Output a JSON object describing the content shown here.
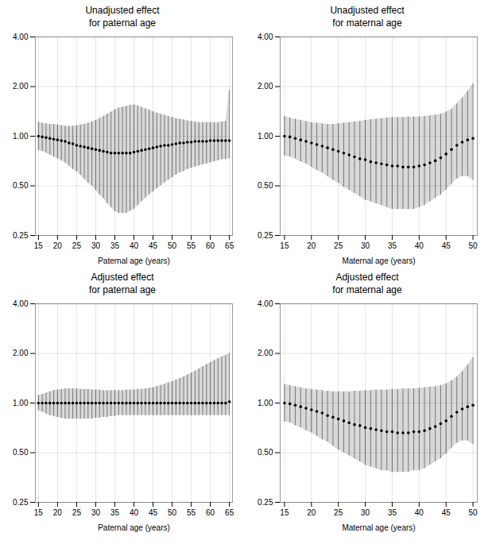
{
  "chart_data": [
    {
      "type": "scatter",
      "title": "Unadjusted effect\nfor paternal age",
      "x_label": "Paternal age (years)",
      "x": [
        15,
        16,
        17,
        18,
        19,
        20,
        21,
        22,
        23,
        24,
        25,
        26,
        27,
        28,
        29,
        30,
        31,
        32,
        33,
        34,
        35,
        36,
        37,
        38,
        39,
        40,
        41,
        42,
        43,
        44,
        45,
        46,
        47,
        48,
        49,
        50,
        51,
        52,
        53,
        54,
        55,
        56,
        57,
        58,
        59,
        60,
        61,
        62,
        63,
        64,
        65
      ],
      "values": [
        1.0,
        0.99,
        0.98,
        0.97,
        0.96,
        0.95,
        0.94,
        0.93,
        0.91,
        0.9,
        0.88,
        0.87,
        0.86,
        0.85,
        0.84,
        0.83,
        0.82,
        0.81,
        0.8,
        0.79,
        0.79,
        0.79,
        0.79,
        0.79,
        0.79,
        0.8,
        0.81,
        0.82,
        0.83,
        0.84,
        0.85,
        0.86,
        0.87,
        0.88,
        0.88,
        0.89,
        0.9,
        0.91,
        0.91,
        0.92,
        0.92,
        0.93,
        0.93,
        0.93,
        0.93,
        0.94,
        0.94,
        0.94,
        0.94,
        0.94,
        0.94
      ],
      "ci_lower": [
        0.82,
        0.81,
        0.79,
        0.77,
        0.75,
        0.73,
        0.71,
        0.69,
        0.66,
        0.63,
        0.61,
        0.58,
        0.55,
        0.52,
        0.5,
        0.47,
        0.44,
        0.42,
        0.39,
        0.37,
        0.35,
        0.34,
        0.34,
        0.34,
        0.35,
        0.36,
        0.38,
        0.4,
        0.42,
        0.44,
        0.46,
        0.48,
        0.5,
        0.52,
        0.54,
        0.56,
        0.58,
        0.6,
        0.61,
        0.63,
        0.64,
        0.65,
        0.66,
        0.67,
        0.68,
        0.69,
        0.7,
        0.71,
        0.72,
        0.72,
        0.73
      ],
      "ci_upper": [
        1.22,
        1.2,
        1.19,
        1.18,
        1.18,
        1.17,
        1.16,
        1.15,
        1.15,
        1.15,
        1.16,
        1.17,
        1.18,
        1.2,
        1.22,
        1.25,
        1.28,
        1.32,
        1.36,
        1.4,
        1.45,
        1.48,
        1.5,
        1.52,
        1.54,
        1.55,
        1.53,
        1.5,
        1.47,
        1.44,
        1.41,
        1.38,
        1.36,
        1.34,
        1.32,
        1.3,
        1.28,
        1.27,
        1.26,
        1.24,
        1.23,
        1.22,
        1.21,
        1.21,
        1.21,
        1.21,
        1.21,
        1.21,
        1.22,
        1.23,
        1.9
      ],
      "xlim": [
        14.2,
        65.8
      ],
      "xticks": [
        15,
        20,
        25,
        30,
        35,
        40,
        45,
        50,
        55,
        60,
        65
      ],
      "ylim": [
        0.25,
        4.0
      ],
      "yticks": [
        0.25,
        {
          "value": 0.5,
          "label": "0.50"
        },
        {
          "value": 1,
          "label": "1.00"
        },
        {
          "value": 2,
          "label": "2.00"
        },
        {
          "value": 4,
          "label": "4.00"
        }
      ],
      "log": "y",
      "grid": true,
      "marker": "circle"
    },
    {
      "type": "scatter",
      "title": "Unadjusted effect\nfor maternal age",
      "x_label": "Maternal age (years)",
      "x": [
        15,
        16,
        17,
        18,
        19,
        20,
        21,
        22,
        23,
        24,
        25,
        26,
        27,
        28,
        29,
        30,
        31,
        32,
        33,
        34,
        35,
        36,
        37,
        38,
        39,
        40,
        41,
        42,
        43,
        44,
        45,
        46,
        47,
        48,
        49,
        50
      ],
      "values": [
        1.0,
        0.99,
        0.97,
        0.95,
        0.93,
        0.91,
        0.89,
        0.87,
        0.85,
        0.83,
        0.81,
        0.79,
        0.77,
        0.75,
        0.73,
        0.72,
        0.7,
        0.69,
        0.68,
        0.67,
        0.66,
        0.66,
        0.65,
        0.65,
        0.65,
        0.66,
        0.67,
        0.69,
        0.71,
        0.74,
        0.78,
        0.83,
        0.88,
        0.92,
        0.95,
        0.97
      ],
      "ci_lower": [
        0.76,
        0.75,
        0.73,
        0.7,
        0.68,
        0.65,
        0.62,
        0.6,
        0.57,
        0.54,
        0.52,
        0.49,
        0.47,
        0.45,
        0.43,
        0.41,
        0.4,
        0.39,
        0.38,
        0.37,
        0.36,
        0.36,
        0.36,
        0.36,
        0.36,
        0.37,
        0.38,
        0.4,
        0.42,
        0.44,
        0.47,
        0.51,
        0.55,
        0.57,
        0.57,
        0.54
      ],
      "ci_upper": [
        1.32,
        1.29,
        1.27,
        1.25,
        1.23,
        1.21,
        1.2,
        1.19,
        1.18,
        1.18,
        1.19,
        1.2,
        1.21,
        1.22,
        1.23,
        1.25,
        1.26,
        1.27,
        1.28,
        1.29,
        1.3,
        1.3,
        1.3,
        1.31,
        1.31,
        1.31,
        1.32,
        1.33,
        1.34,
        1.36,
        1.4,
        1.46,
        1.57,
        1.7,
        1.87,
        2.08
      ],
      "xlim": [
        14.2,
        50.8
      ],
      "xticks": [
        15,
        20,
        25,
        30,
        35,
        40,
        45,
        50
      ],
      "ylim": [
        0.25,
        4.0
      ],
      "yticks": [
        0.25,
        {
          "value": 0.5,
          "label": "0.50"
        },
        {
          "value": 1,
          "label": "1.00"
        },
        {
          "value": 2,
          "label": "2.00"
        },
        {
          "value": 4,
          "label": "4.00"
        }
      ],
      "log": "y",
      "grid": true,
      "marker": "circle"
    },
    {
      "type": "scatter",
      "title": "Adjusted effect\nfor paternal age",
      "x_label": "Paternal age (years)",
      "x": [
        15,
        16,
        17,
        18,
        19,
        20,
        21,
        22,
        23,
        24,
        25,
        26,
        27,
        28,
        29,
        30,
        31,
        32,
        33,
        34,
        35,
        36,
        37,
        38,
        39,
        40,
        41,
        42,
        43,
        44,
        45,
        46,
        47,
        48,
        49,
        50,
        51,
        52,
        53,
        54,
        55,
        56,
        57,
        58,
        59,
        60,
        61,
        62,
        63,
        64,
        65
      ],
      "values": [
        1.0,
        1.0,
        1.0,
        1.0,
        1.0,
        1.0,
        1.0,
        1.0,
        1.0,
        1.0,
        1.0,
        1.0,
        1.0,
        1.0,
        1.0,
        1.0,
        1.0,
        1.0,
        1.0,
        1.0,
        1.0,
        1.0,
        1.0,
        1.0,
        1.0,
        1.0,
        1.0,
        1.0,
        1.0,
        1.0,
        1.0,
        1.0,
        1.0,
        1.0,
        1.0,
        1.0,
        1.0,
        1.0,
        1.0,
        1.0,
        1.0,
        1.0,
        1.0,
        1.0,
        1.0,
        1.0,
        1.0,
        1.0,
        1.0,
        1.0,
        1.02
      ],
      "ci_lower": [
        0.9,
        0.88,
        0.86,
        0.84,
        0.83,
        0.82,
        0.81,
        0.8,
        0.8,
        0.8,
        0.8,
        0.8,
        0.8,
        0.8,
        0.8,
        0.81,
        0.81,
        0.82,
        0.82,
        0.83,
        0.83,
        0.84,
        0.84,
        0.84,
        0.84,
        0.84,
        0.84,
        0.84,
        0.84,
        0.84,
        0.84,
        0.84,
        0.84,
        0.84,
        0.84,
        0.84,
        0.84,
        0.84,
        0.84,
        0.84,
        0.84,
        0.84,
        0.84,
        0.84,
        0.84,
        0.84,
        0.84,
        0.84,
        0.84,
        0.84,
        0.84
      ],
      "ci_upper": [
        1.11,
        1.13,
        1.15,
        1.17,
        1.19,
        1.2,
        1.21,
        1.22,
        1.22,
        1.22,
        1.22,
        1.21,
        1.21,
        1.21,
        1.2,
        1.2,
        1.2,
        1.19,
        1.19,
        1.19,
        1.19,
        1.19,
        1.19,
        1.2,
        1.2,
        1.2,
        1.21,
        1.21,
        1.22,
        1.23,
        1.24,
        1.26,
        1.28,
        1.3,
        1.33,
        1.35,
        1.38,
        1.41,
        1.44,
        1.48,
        1.52,
        1.56,
        1.61,
        1.66,
        1.71,
        1.76,
        1.81,
        1.86,
        1.91,
        1.95,
        2.0
      ],
      "xlim": [
        14.2,
        65.8
      ],
      "xticks": [
        15,
        20,
        25,
        30,
        35,
        40,
        45,
        50,
        55,
        60,
        65
      ],
      "ylim": [
        0.25,
        4.0
      ],
      "yticks": [
        0.25,
        {
          "value": 0.5,
          "label": "0.50"
        },
        {
          "value": 1,
          "label": "1.00"
        },
        {
          "value": 2,
          "label": "2.00"
        },
        {
          "value": 4,
          "label": "4.00"
        }
      ],
      "log": "y",
      "grid": true,
      "marker": "circle"
    },
    {
      "type": "scatter",
      "title": "Adjusted effect\nfor maternal age",
      "x_label": "Maternal age (years)",
      "x": [
        15,
        16,
        17,
        18,
        19,
        20,
        21,
        22,
        23,
        24,
        25,
        26,
        27,
        28,
        29,
        30,
        31,
        32,
        33,
        34,
        35,
        36,
        37,
        38,
        39,
        40,
        41,
        42,
        43,
        44,
        45,
        46,
        47,
        48,
        49,
        50
      ],
      "values": [
        1.0,
        0.99,
        0.97,
        0.95,
        0.93,
        0.91,
        0.89,
        0.87,
        0.84,
        0.82,
        0.8,
        0.78,
        0.76,
        0.74,
        0.73,
        0.71,
        0.7,
        0.69,
        0.68,
        0.67,
        0.67,
        0.66,
        0.66,
        0.66,
        0.67,
        0.67,
        0.68,
        0.7,
        0.72,
        0.75,
        0.78,
        0.83,
        0.88,
        0.92,
        0.95,
        0.97
      ],
      "ci_lower": [
        0.77,
        0.76,
        0.73,
        0.71,
        0.68,
        0.66,
        0.63,
        0.6,
        0.58,
        0.55,
        0.52,
        0.5,
        0.48,
        0.46,
        0.44,
        0.42,
        0.41,
        0.4,
        0.39,
        0.39,
        0.38,
        0.38,
        0.38,
        0.38,
        0.39,
        0.39,
        0.4,
        0.42,
        0.44,
        0.46,
        0.49,
        0.53,
        0.57,
        0.59,
        0.59,
        0.56
      ],
      "ci_upper": [
        1.3,
        1.28,
        1.26,
        1.24,
        1.22,
        1.21,
        1.2,
        1.19,
        1.18,
        1.17,
        1.17,
        1.17,
        1.17,
        1.18,
        1.18,
        1.19,
        1.19,
        1.2,
        1.2,
        1.2,
        1.21,
        1.21,
        1.22,
        1.22,
        1.22,
        1.23,
        1.24,
        1.25,
        1.26,
        1.28,
        1.31,
        1.36,
        1.44,
        1.55,
        1.7,
        1.89
      ],
      "xlim": [
        14.2,
        50.8
      ],
      "xticks": [
        15,
        20,
        25,
        30,
        35,
        40,
        45,
        50
      ],
      "ylim": [
        0.25,
        4.0
      ],
      "yticks": [
        0.25,
        {
          "value": 0.5,
          "label": "0.50"
        },
        {
          "value": 1,
          "label": "1.00"
        },
        {
          "value": 2,
          "label": "2.00"
        },
        {
          "value": 4,
          "label": "4.00"
        }
      ],
      "log": "y",
      "grid": true,
      "marker": "circle"
    }
  ]
}
